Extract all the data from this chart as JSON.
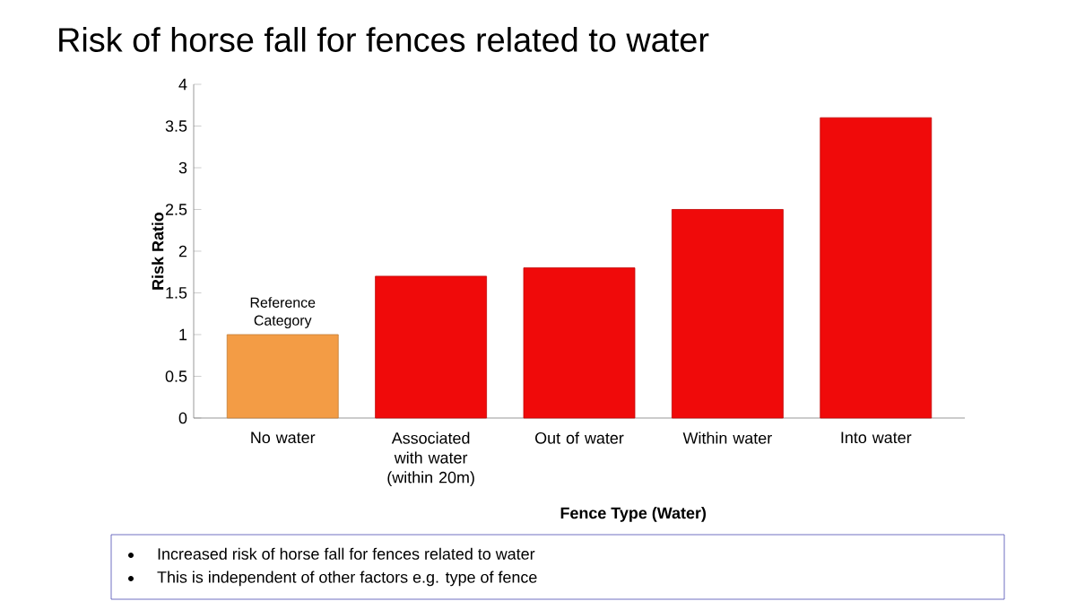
{
  "chart_data": {
    "type": "bar",
    "title": "Risk of horse fall for fences related to water",
    "xlabel": "Fence Type (Water)",
    "ylabel": "Risk Ratio",
    "categories": [
      "No water",
      "Associated with water (within 20m)",
      "Out of water",
      "Within water",
      "Into water"
    ],
    "values": [
      1,
      1.7,
      1.8,
      2.5,
      3.6
    ],
    "colors": [
      "#f39c45",
      "#f00a0a",
      "#f00a0a",
      "#f00a0a",
      "#f00a0a"
    ],
    "ylim": [
      0,
      4
    ],
    "yticks": [
      0,
      0.5,
      1,
      1.5,
      2,
      2.5,
      3,
      3.5,
      4
    ],
    "annotations": [
      {
        "text": "Reference Category",
        "x": "No water",
        "y": 1
      },
      "Increased risk of horse fall for fences related to water",
      "This is independent of other factors e.g. type of fence"
    ]
  }
}
